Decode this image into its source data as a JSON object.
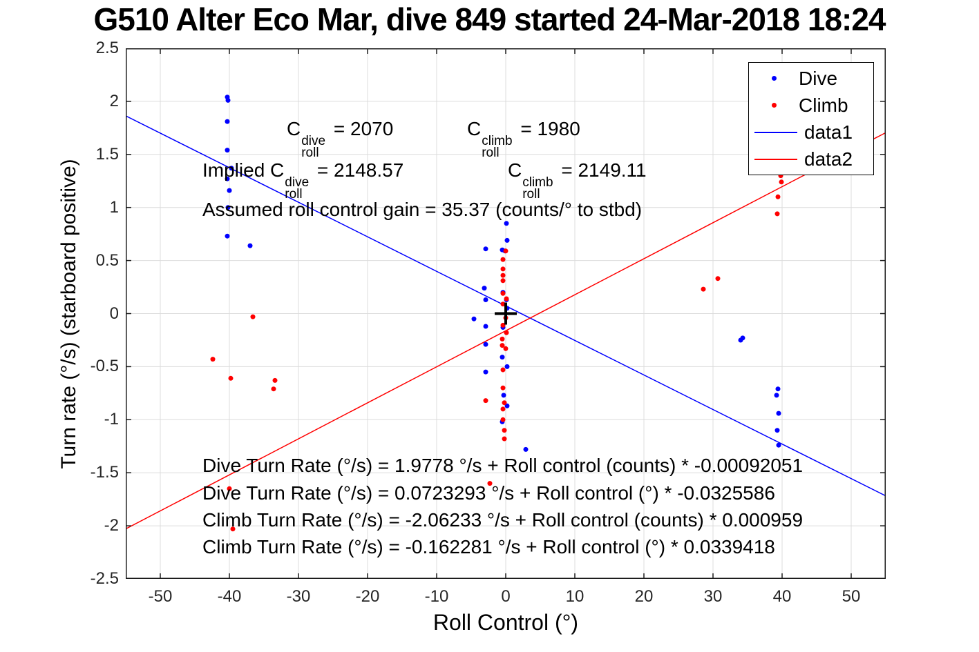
{
  "title": {
    "text": "G510 Alter Eco Mar, dive 849 started 24-Mar-2018 18:24"
  },
  "colors": {
    "dive": "#0000ff",
    "climb": "#ff0000",
    "grid": "#dcdcdc",
    "axis": "#1a1a1a",
    "tick_label": "#262626",
    "marker_plus": "#000000"
  },
  "legend": {
    "items": [
      {
        "label": "Dive",
        "marker": "dot",
        "color": "#0000ff"
      },
      {
        "label": "Climb",
        "marker": "dot",
        "color": "#ff0000"
      },
      {
        "label": "data1",
        "marker": "line",
        "color": "#0000ff"
      },
      {
        "label": "data2",
        "marker": "line",
        "color": "#ff0000"
      }
    ]
  },
  "annotations": {
    "coeff_line": {
      "dive": {
        "base": "C",
        "sup": "dive",
        "sub": "roll",
        "value": " = 2070"
      },
      "climb": {
        "base": "C",
        "sup": "climb",
        "sub": "roll",
        "value": " = 1980"
      }
    },
    "implied_line": {
      "prefix": "Implied ",
      "dive": {
        "base": "C",
        "sup": "dive",
        "sub": "roll",
        "value": " = 2148.57"
      },
      "climb": {
        "base": "C",
        "sup": "climb",
        "sub": "roll",
        "value": " = 2149.11"
      }
    },
    "gain_line": "Assumed roll control gain = 35.37 (counts/° to stbd)",
    "fit_lines": [
      "Dive Turn Rate (°/s) = 1.9778 °/s + Roll control (counts) * -0.00092051",
      "Dive Turn Rate (°/s) = 0.0723293 °/s + Roll control (°) * -0.0325586",
      "Climb Turn Rate (°/s) = -2.06233 °/s + Roll control (counts) * 0.000959",
      "Climb Turn Rate (°/s) = -0.162281 °/s + Roll control (°) * 0.0339418"
    ]
  },
  "chart_data": {
    "type": "scatter",
    "title": "G510 Alter Eco Mar, dive 849 started 24-Mar-2018 18:24",
    "xlabel": "Roll Control (°)",
    "ylabel": "Turn rate (°/s) (starboard positive)",
    "xlim": [
      -55,
      55
    ],
    "ylim": [
      -2.5,
      2.5
    ],
    "grid": true,
    "legend_position": "top-right",
    "x_ticks": [
      -50,
      -40,
      -30,
      -20,
      -10,
      0,
      10,
      20,
      30,
      40,
      50
    ],
    "x_tick_labels": [
      "-50",
      "-40",
      "-30",
      "-20",
      "-10",
      "0",
      "10",
      "20",
      "30",
      "40",
      "50"
    ],
    "y_ticks": [
      -2.5,
      -2,
      -1.5,
      -1,
      -0.5,
      0,
      0.5,
      1,
      1.5,
      2,
      2.5
    ],
    "y_tick_labels": [
      "-2.5",
      "-2",
      "-1.5",
      "-1",
      "-0.5",
      "0",
      "0.5",
      "1",
      "1.5",
      "2",
      "2.5"
    ],
    "series": [
      {
        "name": "Dive",
        "type": "scatter",
        "color": "#0000ff",
        "points": [
          [
            -40.3,
            2.04
          ],
          [
            -40.2,
            2.01
          ],
          [
            -40.3,
            1.81
          ],
          [
            -40.3,
            1.54
          ],
          [
            -39.7,
            1.37
          ],
          [
            -40.3,
            1.27
          ],
          [
            -40.0,
            1.16
          ],
          [
            -40.2,
            1.0
          ],
          [
            -40.3,
            0.73
          ],
          [
            -37.0,
            0.64
          ],
          [
            0.1,
            0.85
          ],
          [
            0.2,
            0.69
          ],
          [
            -2.9,
            0.61
          ],
          [
            -0.5,
            0.6
          ],
          [
            -0.1,
            0.59
          ],
          [
            -3.1,
            0.24
          ],
          [
            -0.4,
            0.2
          ],
          [
            -2.9,
            0.13
          ],
          [
            0.1,
            0.13
          ],
          [
            0.2,
            0.05
          ],
          [
            -4.6,
            -0.05
          ],
          [
            -2.9,
            -0.12
          ],
          [
            -0.4,
            -0.13
          ],
          [
            -2.9,
            -0.29
          ],
          [
            -0.5,
            -0.41
          ],
          [
            0.2,
            -0.5
          ],
          [
            -2.9,
            -0.55
          ],
          [
            -0.3,
            -0.77
          ],
          [
            0.2,
            -0.87
          ],
          [
            -0.5,
            -1.02
          ],
          [
            2.9,
            -1.28
          ],
          [
            34.0,
            -0.25
          ],
          [
            34.3,
            -0.23
          ],
          [
            39.4,
            -0.71
          ],
          [
            39.2,
            -0.77
          ],
          [
            39.5,
            -0.94
          ],
          [
            39.3,
            -1.1
          ],
          [
            39.5,
            -1.24
          ]
        ]
      },
      {
        "name": "Climb",
        "type": "scatter",
        "color": "#ff0000",
        "points": [
          [
            -36.6,
            -0.03
          ],
          [
            -42.4,
            -0.43
          ],
          [
            -39.8,
            -0.61
          ],
          [
            -33.4,
            -0.63
          ],
          [
            -33.6,
            -0.71
          ],
          [
            -40.0,
            -1.65
          ],
          [
            -39.5,
            -2.03
          ],
          [
            0.0,
            0.59
          ],
          [
            -0.4,
            0.51
          ],
          [
            -0.4,
            0.42
          ],
          [
            -0.4,
            0.36
          ],
          [
            -0.4,
            0.31
          ],
          [
            -0.4,
            0.19
          ],
          [
            0.1,
            0.14
          ],
          [
            -0.4,
            0.09
          ],
          [
            0.0,
            -0.04
          ],
          [
            -0.4,
            -0.11
          ],
          [
            0.1,
            -0.18
          ],
          [
            -0.5,
            -0.24
          ],
          [
            -0.5,
            -0.3
          ],
          [
            0.0,
            -0.33
          ],
          [
            -0.4,
            -0.53
          ],
          [
            -0.4,
            -0.7
          ],
          [
            -2.9,
            -0.82
          ],
          [
            -0.2,
            -0.84
          ],
          [
            -0.4,
            -0.9
          ],
          [
            -0.4,
            -1.0
          ],
          [
            -0.2,
            -1.1
          ],
          [
            -0.2,
            -1.18
          ],
          [
            -2.3,
            -1.6
          ],
          [
            30.7,
            0.33
          ],
          [
            28.6,
            0.23
          ],
          [
            39.8,
            1.3
          ],
          [
            39.9,
            1.24
          ],
          [
            39.4,
            1.1
          ],
          [
            39.3,
            0.94
          ]
        ]
      },
      {
        "name": "data1",
        "type": "line",
        "color": "#0000ff",
        "x": [
          -55,
          55
        ],
        "y": [
          1.863,
          -1.718
        ],
        "intercept": 0.0723293,
        "slope": -0.0325586
      },
      {
        "name": "data2",
        "type": "line",
        "color": "#ff0000",
        "x": [
          -55,
          55
        ],
        "y": [
          -2.029,
          1.705
        ],
        "intercept": -0.162281,
        "slope": 0.0339418
      },
      {
        "name": "origin-marker",
        "type": "marker",
        "marker": "+",
        "color": "#000000",
        "points": [
          [
            0,
            0
          ]
        ]
      }
    ]
  }
}
